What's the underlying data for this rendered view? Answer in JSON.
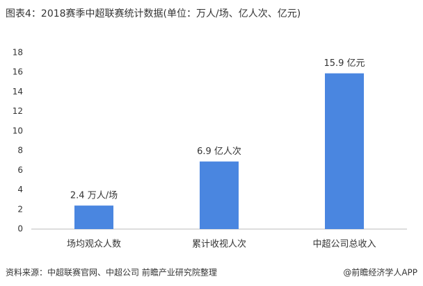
{
  "chart_data": {
    "type": "bar",
    "title": "图表4：2018赛季中超联赛统计数据(单位：万人/场、亿人次、亿元)",
    "categories": [
      "场均观众人数",
      "累计收视人次",
      "中超公司总收入"
    ],
    "values": [
      2.4,
      6.9,
      15.9
    ],
    "value_labels": [
      "2.4 万人/场",
      "6.9 亿人次",
      "15.9 亿元"
    ],
    "color": "#4a86e0",
    "ylim": [
      0,
      18
    ],
    "yticks": [
      0,
      2,
      4,
      6,
      8,
      10,
      12,
      14,
      16,
      18
    ],
    "grid": false,
    "source": "资料来源：中超联赛官网、中超公司 前瞻产业研究院整理",
    "brand": "@前瞻经济学人APP"
  }
}
